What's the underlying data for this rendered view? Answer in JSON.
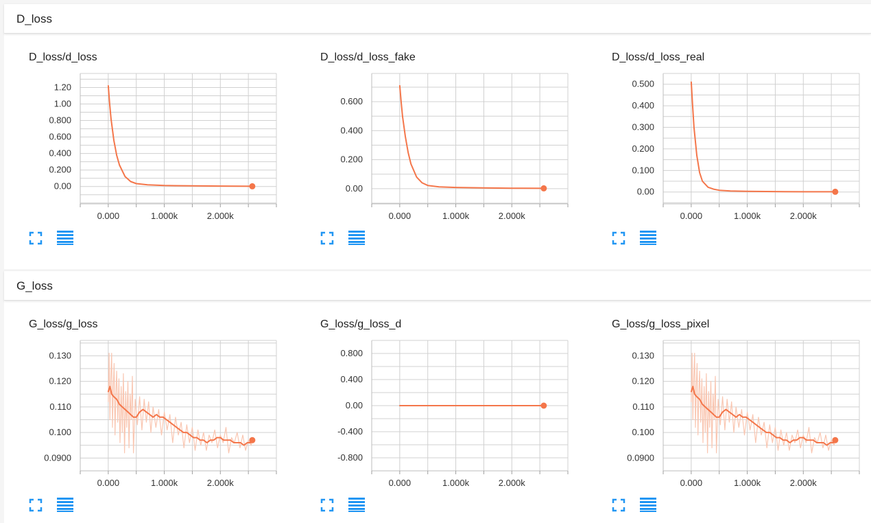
{
  "sections": [
    {
      "title": "D_loss"
    },
    {
      "title": "G_loss"
    }
  ],
  "colors": {
    "series": "#f4764a",
    "raw": "#f9c6b1",
    "grid": "#d0d0d0",
    "icon": "#2196f3"
  },
  "icons": [
    "fit-domain-icon",
    "toggle-log-scale-icon"
  ],
  "chart_data": [
    {
      "type": "line",
      "title": "D_loss/d_loss",
      "xticks": [
        "0.000",
        "1.000k",
        "2.000k"
      ],
      "xtick_values": [
        0,
        1000,
        2000
      ],
      "xlim": [
        -500,
        3000
      ],
      "yticks": [
        "0.00",
        "0.200",
        "0.400",
        "0.600",
        "0.800",
        "1.00",
        "1.20"
      ],
      "ytick_values": [
        0,
        0.2,
        0.4,
        0.6,
        0.8,
        1.0,
        1.2
      ],
      "ylim": [
        -0.21,
        1.37
      ],
      "series": [
        {
          "x": [
            0,
            25,
            50,
            100,
            150,
            200,
            300,
            400,
            500,
            700,
            1000,
            1500,
            2000,
            2570
          ],
          "values": [
            1.22,
            1.0,
            0.82,
            0.56,
            0.38,
            0.26,
            0.12,
            0.06,
            0.035,
            0.02,
            0.012,
            0.008,
            0.005,
            0.003
          ]
        }
      ]
    },
    {
      "type": "line",
      "title": "D_loss/d_loss_fake",
      "xticks": [
        "0.000",
        "1.000k",
        "2.000k"
      ],
      "xtick_values": [
        0,
        1000,
        2000
      ],
      "xlim": [
        -500,
        3000
      ],
      "yticks": [
        "0.00",
        "0.200",
        "0.400",
        "0.600"
      ],
      "ytick_values": [
        0,
        0.2,
        0.4,
        0.6
      ],
      "ylim": [
        -0.105,
        0.795
      ],
      "series": [
        {
          "x": [
            0,
            25,
            50,
            100,
            150,
            200,
            300,
            400,
            500,
            700,
            1000,
            1500,
            2000,
            2570
          ],
          "values": [
            0.71,
            0.6,
            0.5,
            0.36,
            0.25,
            0.17,
            0.08,
            0.04,
            0.022,
            0.012,
            0.008,
            0.005,
            0.003,
            0.002
          ]
        }
      ]
    },
    {
      "type": "line",
      "title": "D_loss/d_loss_real",
      "xticks": [
        "0.000",
        "1.000k",
        "2.000k"
      ],
      "xtick_values": [
        0,
        1000,
        2000
      ],
      "xlim": [
        -500,
        3000
      ],
      "yticks": [
        "0.00",
        "0.100",
        "0.200",
        "0.300",
        "0.400",
        "0.500"
      ],
      "ytick_values": [
        0,
        0.1,
        0.2,
        0.3,
        0.4,
        0.5
      ],
      "ylim": [
        -0.055,
        0.55
      ],
      "series": [
        {
          "x": [
            0,
            25,
            50,
            100,
            150,
            200,
            300,
            400,
            500,
            700,
            1000,
            1500,
            2000,
            2570
          ],
          "values": [
            0.51,
            0.4,
            0.3,
            0.17,
            0.09,
            0.05,
            0.022,
            0.013,
            0.008,
            0.005,
            0.003,
            0.002,
            0.001,
            0.001
          ]
        }
      ]
    },
    {
      "type": "line",
      "title": "G_loss/g_loss",
      "xticks": [
        "0.000",
        "1.000k",
        "2.000k"
      ],
      "xtick_values": [
        0,
        1000,
        2000
      ],
      "xlim": [
        -500,
        3000
      ],
      "yticks": [
        "0.0900",
        "0.100",
        "0.110",
        "0.120",
        "0.130"
      ],
      "ytick_values": [
        0.09,
        0.1,
        0.11,
        0.12,
        0.13
      ],
      "ylim": [
        0.085,
        0.136
      ],
      "series": [
        {
          "name": "smoothed",
          "x": [
            0,
            30,
            60,
            100,
            150,
            200,
            250,
            300,
            350,
            400,
            450,
            500,
            560,
            620,
            680,
            740,
            800,
            860,
            920,
            980,
            1040,
            1100,
            1160,
            1220,
            1280,
            1340,
            1400,
            1460,
            1520,
            1580,
            1640,
            1700,
            1760,
            1820,
            1880,
            1940,
            2000,
            2060,
            2120,
            2180,
            2240,
            2300,
            2360,
            2420,
            2480,
            2540,
            2570
          ],
          "values": [
            0.116,
            0.118,
            0.115,
            0.114,
            0.113,
            0.111,
            0.11,
            0.109,
            0.108,
            0.107,
            0.106,
            0.106,
            0.108,
            0.109,
            0.108,
            0.107,
            0.106,
            0.107,
            0.106,
            0.106,
            0.105,
            0.104,
            0.103,
            0.102,
            0.101,
            0.1,
            0.1,
            0.099,
            0.098,
            0.098,
            0.097,
            0.097,
            0.096,
            0.097,
            0.097,
            0.098,
            0.098,
            0.097,
            0.097,
            0.097,
            0.096,
            0.096,
            0.096,
            0.095,
            0.096,
            0.096,
            0.097
          ]
        },
        {
          "name": "raw",
          "x": [
            0,
            15,
            30,
            45,
            60,
            75,
            90,
            105,
            120,
            135,
            150,
            170,
            190,
            210,
            230,
            250,
            270,
            290,
            310,
            330,
            350,
            370,
            390,
            410,
            430,
            450,
            480,
            520,
            560,
            600,
            640,
            680,
            720,
            760,
            800,
            850,
            900,
            950,
            1000,
            1050,
            1100,
            1150,
            1200,
            1250,
            1300,
            1350,
            1400,
            1450,
            1500,
            1550,
            1600,
            1650,
            1700,
            1750,
            1800,
            1850,
            1900,
            1950,
            2000,
            2050,
            2100,
            2150,
            2200,
            2250,
            2300,
            2350,
            2400,
            2450,
            2500,
            2550,
            2570
          ],
          "values": [
            0.112,
            0.131,
            0.105,
            0.121,
            0.131,
            0.102,
            0.118,
            0.127,
            0.099,
            0.115,
            0.124,
            0.104,
            0.121,
            0.096,
            0.118,
            0.1,
            0.123,
            0.092,
            0.116,
            0.102,
            0.12,
            0.094,
            0.115,
            0.105,
            0.122,
            0.092,
            0.113,
            0.103,
            0.114,
            0.101,
            0.113,
            0.104,
            0.112,
            0.1,
            0.11,
            0.102,
            0.109,
            0.099,
            0.108,
            0.101,
            0.107,
            0.096,
            0.106,
            0.099,
            0.104,
            0.094,
            0.103,
            0.096,
            0.102,
            0.093,
            0.101,
            0.095,
            0.1,
            0.093,
            0.099,
            0.096,
            0.101,
            0.094,
            0.099,
            0.096,
            0.102,
            0.092,
            0.098,
            0.096,
            0.1,
            0.094,
            0.099,
            0.093,
            0.097,
            0.095,
            0.097
          ]
        }
      ]
    },
    {
      "type": "line",
      "title": "G_loss/g_loss_d",
      "xticks": [
        "0.000",
        "1.000k",
        "2.000k"
      ],
      "xtick_values": [
        0,
        1000,
        2000
      ],
      "xlim": [
        -500,
        3000
      ],
      "yticks": [
        "-0.800",
        "-0.400",
        "0.00",
        "0.400",
        "0.800"
      ],
      "ytick_values": [
        -0.8,
        -0.4,
        0,
        0.4,
        0.8
      ],
      "ylim": [
        -1.0,
        1.0
      ],
      "series": [
        {
          "x": [
            0,
            2570
          ],
          "values": [
            0,
            0
          ]
        }
      ]
    },
    {
      "type": "line",
      "title": "G_loss/g_loss_pixel",
      "xticks": [
        "0.000",
        "1.000k",
        "2.000k"
      ],
      "xtick_values": [
        0,
        1000,
        2000
      ],
      "xlim": [
        -500,
        3000
      ],
      "yticks": [
        "0.0900",
        "0.100",
        "0.110",
        "0.120",
        "0.130"
      ],
      "ytick_values": [
        0.09,
        0.1,
        0.11,
        0.12,
        0.13
      ],
      "ylim": [
        0.085,
        0.136
      ],
      "series": [
        {
          "name": "smoothed",
          "x": [
            0,
            30,
            60,
            100,
            150,
            200,
            250,
            300,
            350,
            400,
            450,
            500,
            560,
            620,
            680,
            740,
            800,
            860,
            920,
            980,
            1040,
            1100,
            1160,
            1220,
            1280,
            1340,
            1400,
            1460,
            1520,
            1580,
            1640,
            1700,
            1760,
            1820,
            1880,
            1940,
            2000,
            2060,
            2120,
            2180,
            2240,
            2300,
            2360,
            2420,
            2480,
            2540,
            2570
          ],
          "values": [
            0.116,
            0.118,
            0.115,
            0.114,
            0.113,
            0.111,
            0.11,
            0.109,
            0.108,
            0.107,
            0.106,
            0.106,
            0.108,
            0.109,
            0.108,
            0.107,
            0.106,
            0.107,
            0.106,
            0.106,
            0.105,
            0.104,
            0.103,
            0.102,
            0.101,
            0.1,
            0.1,
            0.099,
            0.098,
            0.098,
            0.097,
            0.097,
            0.096,
            0.097,
            0.097,
            0.098,
            0.098,
            0.097,
            0.097,
            0.097,
            0.096,
            0.096,
            0.096,
            0.095,
            0.096,
            0.096,
            0.097
          ]
        },
        {
          "name": "raw",
          "x": [
            0,
            15,
            30,
            45,
            60,
            75,
            90,
            105,
            120,
            135,
            150,
            170,
            190,
            210,
            230,
            250,
            270,
            290,
            310,
            330,
            350,
            370,
            390,
            410,
            430,
            450,
            480,
            520,
            560,
            600,
            640,
            680,
            720,
            760,
            800,
            850,
            900,
            950,
            1000,
            1050,
            1100,
            1150,
            1200,
            1250,
            1300,
            1350,
            1400,
            1450,
            1500,
            1550,
            1600,
            1650,
            1700,
            1750,
            1800,
            1850,
            1900,
            1950,
            2000,
            2050,
            2100,
            2150,
            2200,
            2250,
            2300,
            2350,
            2400,
            2450,
            2500,
            2550,
            2570
          ],
          "values": [
            0.112,
            0.131,
            0.105,
            0.121,
            0.131,
            0.102,
            0.118,
            0.127,
            0.099,
            0.115,
            0.124,
            0.104,
            0.121,
            0.096,
            0.118,
            0.1,
            0.123,
            0.092,
            0.116,
            0.102,
            0.12,
            0.094,
            0.115,
            0.105,
            0.122,
            0.092,
            0.113,
            0.103,
            0.114,
            0.101,
            0.113,
            0.104,
            0.112,
            0.1,
            0.11,
            0.102,
            0.109,
            0.099,
            0.108,
            0.101,
            0.107,
            0.096,
            0.106,
            0.099,
            0.104,
            0.094,
            0.103,
            0.096,
            0.102,
            0.093,
            0.101,
            0.095,
            0.1,
            0.093,
            0.099,
            0.096,
            0.101,
            0.094,
            0.099,
            0.096,
            0.102,
            0.092,
            0.098,
            0.096,
            0.1,
            0.094,
            0.099,
            0.093,
            0.097,
            0.095,
            0.097
          ]
        }
      ]
    }
  ]
}
